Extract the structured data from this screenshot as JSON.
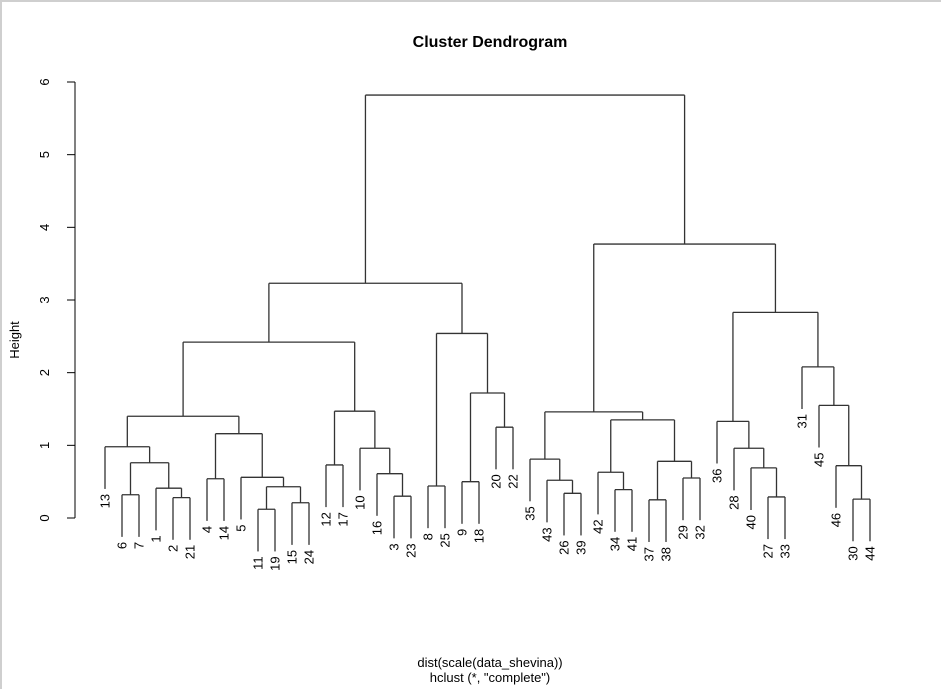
{
  "chart_data": {
    "type": "dendrogram",
    "title": "Cluster Dendrogram",
    "ylabel": "Height",
    "xlabel": "dist(scale(data_shevina))",
    "sub": "hclust (*, \"complete\")",
    "ylim": [
      0,
      6
    ],
    "yticks": [
      "0",
      "1",
      "2",
      "3",
      "4",
      "5",
      "6"
    ],
    "leaf_order": [
      "13",
      "6",
      "7",
      "1",
      "2",
      "21",
      "4",
      "14",
      "5",
      "11",
      "19",
      "15",
      "24",
      "12",
      "17",
      "10",
      "16",
      "3",
      "23",
      "8",
      "25",
      "9",
      "18",
      "20",
      "22",
      "35",
      "43",
      "26",
      "39",
      "42",
      "34",
      "41",
      "37",
      "38",
      "29",
      "32",
      "36",
      "28",
      "40",
      "27",
      "33",
      "31",
      "45",
      "46",
      "30",
      "44"
    ],
    "tree": {
      "h": 5.82,
      "c": [
        {
          "h": 3.23,
          "c": [
            {
              "h": 2.42,
              "c": [
                {
                  "h": 1.4,
                  "c": [
                    {
                      "h": 0.98,
                      "c": [
                        "13",
                        {
                          "h": 0.76,
                          "c": [
                            {
                              "h": 0.32,
                              "c": [
                                "6",
                                "7"
                              ]
                            },
                            {
                              "h": 0.41,
                              "c": [
                                "1",
                                {
                                  "h": 0.28,
                                  "c": [
                                    "2",
                                    "21"
                                  ]
                                }
                              ]
                            }
                          ]
                        }
                      ]
                    },
                    {
                      "h": 1.16,
                      "c": [
                        {
                          "h": 0.54,
                          "c": [
                            "4",
                            "14"
                          ]
                        },
                        {
                          "h": 0.56,
                          "c": [
                            "5",
                            {
                              "h": 0.43,
                              "c": [
                                {
                                  "h": 0.12,
                                  "c": [
                                    "11",
                                    "19"
                                  ]
                                },
                                {
                                  "h": 0.21,
                                  "c": [
                                    "15",
                                    "24"
                                  ]
                                }
                              ]
                            }
                          ]
                        }
                      ]
                    }
                  ]
                },
                {
                  "h": 1.47,
                  "c": [
                    {
                      "h": 0.73,
                      "c": [
                        "12",
                        "17"
                      ]
                    },
                    {
                      "h": 0.96,
                      "c": [
                        "10",
                        {
                          "h": 0.61,
                          "c": [
                            "16",
                            {
                              "h": 0.3,
                              "c": [
                                "3",
                                "23"
                              ]
                            }
                          ]
                        }
                      ]
                    }
                  ]
                }
              ]
            },
            {
              "h": 2.54,
              "c": [
                {
                  "h": 0.44,
                  "c": [
                    "8",
                    "25"
                  ]
                },
                {
                  "h": 1.72,
                  "c": [
                    {
                      "h": 0.5,
                      "c": [
                        "9",
                        "18"
                      ]
                    },
                    {
                      "h": 1.25,
                      "c": [
                        "20",
                        "22"
                      ]
                    }
                  ]
                }
              ]
            }
          ]
        },
        {
          "h": 3.77,
          "c": [
            {
              "h": 1.46,
              "c": [
                {
                  "h": 0.81,
                  "c": [
                    "35",
                    {
                      "h": 0.52,
                      "c": [
                        "43",
                        {
                          "h": 0.34,
                          "c": [
                            "26",
                            "39"
                          ]
                        }
                      ]
                    }
                  ]
                },
                {
                  "h": 1.35,
                  "c": [
                    {
                      "h": 0.63,
                      "c": [
                        "42",
                        {
                          "h": 0.39,
                          "c": [
                            "34",
                            "41"
                          ]
                        }
                      ]
                    },
                    {
                      "h": 0.78,
                      "c": [
                        {
                          "h": 0.25,
                          "c": [
                            "37",
                            "38"
                          ]
                        },
                        {
                          "h": 0.55,
                          "c": [
                            "29",
                            "32"
                          ]
                        }
                      ]
                    }
                  ]
                }
              ]
            },
            {
              "h": 2.83,
              "c": [
                {
                  "h": 1.33,
                  "c": [
                    "36",
                    {
                      "h": 0.96,
                      "c": [
                        "28",
                        {
                          "h": 0.69,
                          "c": [
                            "40",
                            {
                              "h": 0.29,
                              "c": [
                                "27",
                                "33"
                              ]
                            }
                          ]
                        }
                      ]
                    }
                  ]
                },
                {
                  "h": 2.08,
                  "c": [
                    "31",
                    {
                      "h": 1.55,
                      "c": [
                        "45",
                        {
                          "h": 0.72,
                          "c": [
                            "46",
                            {
                              "h": 0.26,
                              "c": [
                                "30",
                                "44"
                              ]
                            }
                          ]
                        }
                      ]
                    }
                  ]
                }
              ]
            }
          ]
        }
      ]
    },
    "hang": 0.58
  }
}
